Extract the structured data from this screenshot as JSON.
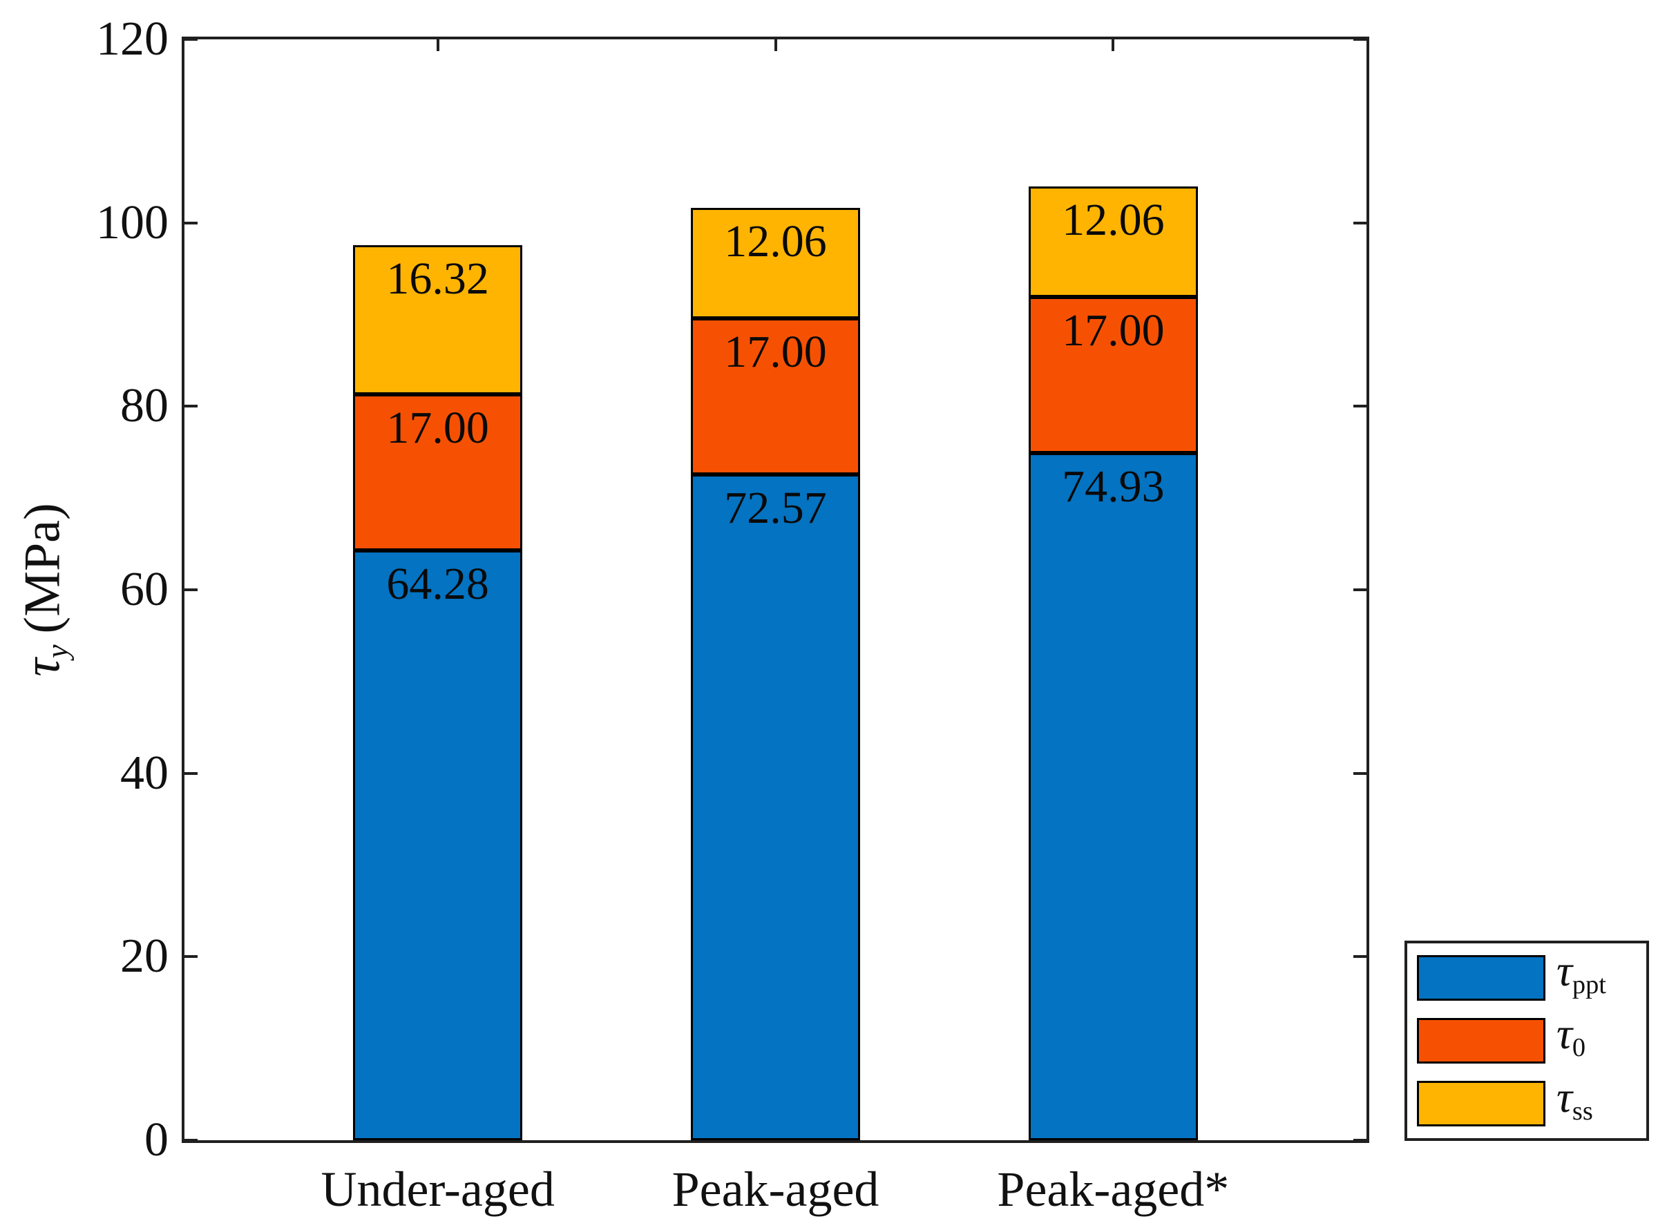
{
  "figure": {
    "background": "#ffffff"
  },
  "ylabel_parts": {
    "symbol": "τ",
    "subscript": "y",
    "unit": "(MPa)"
  },
  "chart_data": {
    "type": "bar",
    "stacked": true,
    "title": "",
    "xlabel": "",
    "ylabel": "τ_y (MPa)",
    "categories": [
      "Under-aged",
      "Peak-aged",
      "Peak-aged*"
    ],
    "series": [
      {
        "name": "τ_ppt",
        "symbol": "τ",
        "subscript": "ppt",
        "color": "#0473C1",
        "values": [
          64.28,
          72.57,
          74.93
        ],
        "labels": [
          "64.28",
          "72.57",
          "74.93"
        ]
      },
      {
        "name": "τ_0",
        "symbol": "τ",
        "subscript": "0",
        "color": "#F65103",
        "values": [
          17.0,
          17.0,
          17.0
        ],
        "labels": [
          "17.00",
          "17.00",
          "17.00"
        ]
      },
      {
        "name": "τ_ss",
        "symbol": "τ",
        "subscript": "ss",
        "color": "#FFB402",
        "values": [
          16.32,
          12.06,
          12.06
        ],
        "labels": [
          "16.32",
          "12.06",
          "12.06"
        ]
      }
    ],
    "totals": [
      97.6,
      101.63,
      103.99
    ],
    "ylim": [
      0,
      120
    ],
    "yticks": [
      0,
      20,
      40,
      60,
      80,
      100,
      120
    ],
    "grid": false,
    "bar_edge_color": "#000000",
    "axis_color": "#202020",
    "legend_position": "bottom-right-outside",
    "legend_entries": [
      "τ_ppt",
      "τ_0",
      "τ_ss"
    ]
  }
}
